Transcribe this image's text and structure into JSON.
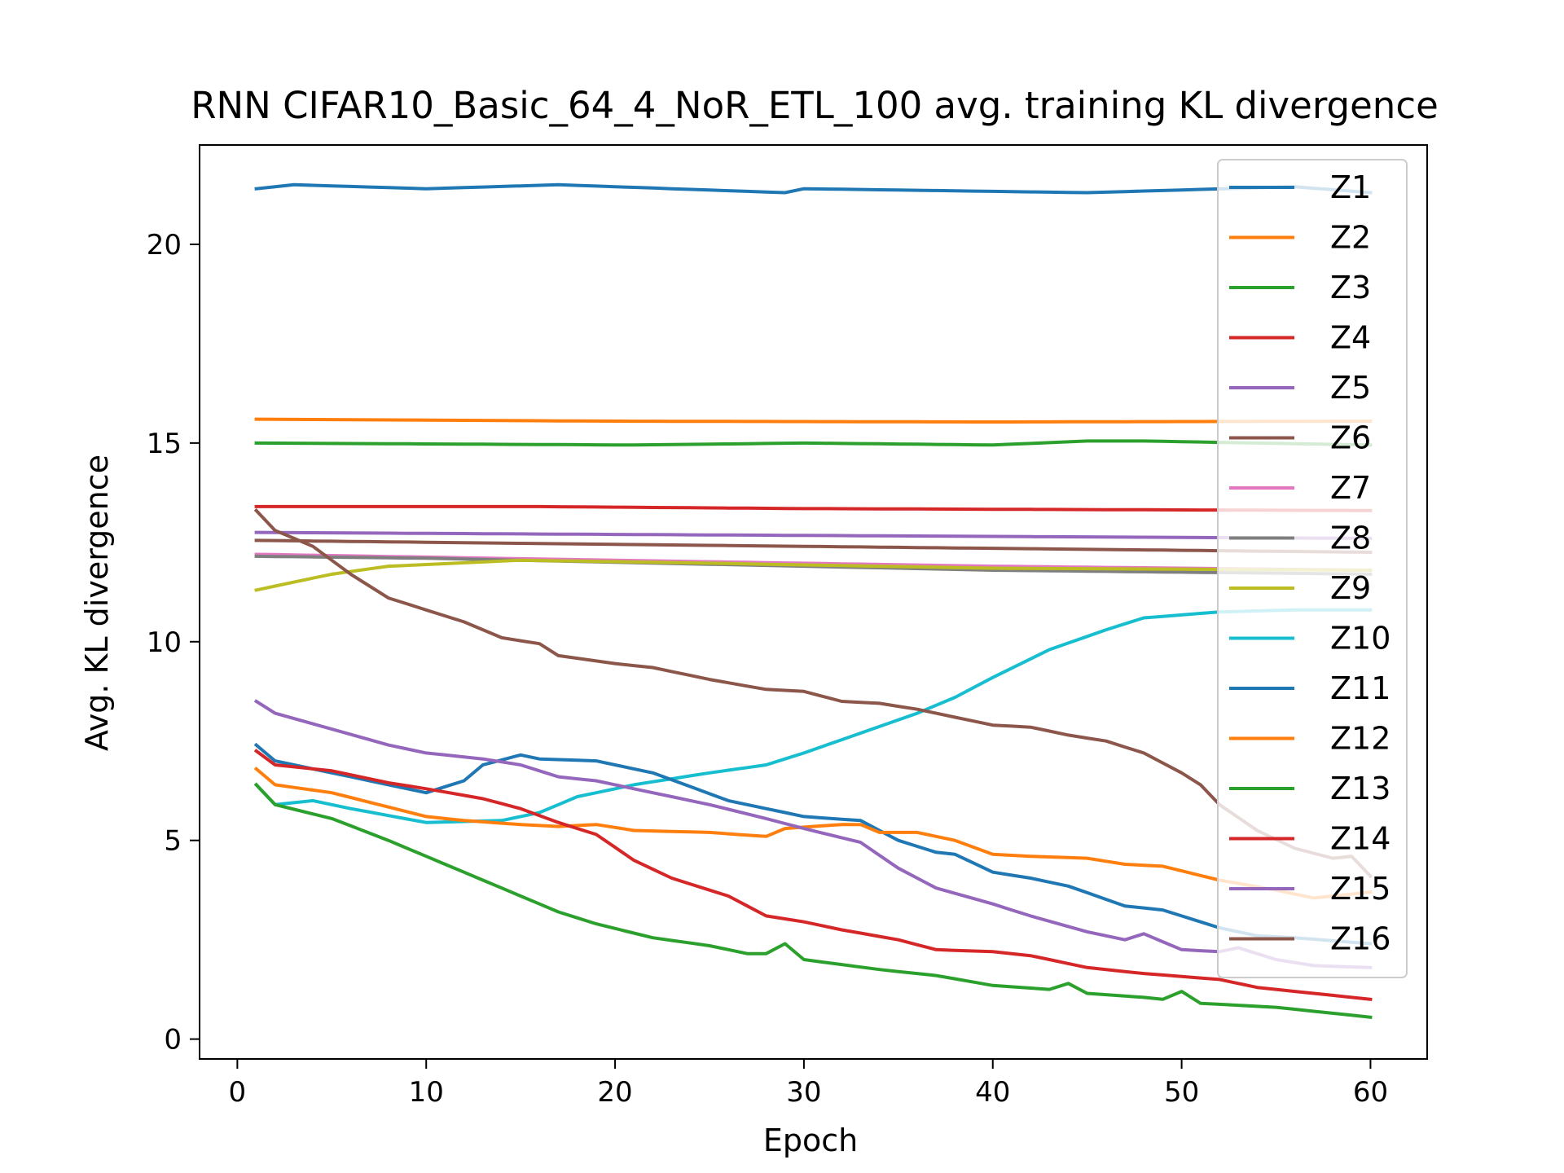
{
  "chart_data": {
    "type": "line",
    "title": "RNN CIFAR10_Basic_64_4_NoR_ETL_100 avg. training KL divergence",
    "xlabel": "Epoch",
    "ylabel": "Avg. KL divergence",
    "xlim": [
      -2,
      63
    ],
    "ylim": [
      -0.5,
      22.5
    ],
    "xticks": [
      0,
      10,
      20,
      30,
      40,
      50,
      60
    ],
    "yticks": [
      0,
      5,
      10,
      15,
      20
    ],
    "grid": false,
    "legend_position": "right, overlapping plot",
    "series": [
      {
        "name": "Z1",
        "color": "#1f77b4",
        "anchors": [
          [
            1,
            21.4
          ],
          [
            3,
            21.5
          ],
          [
            10,
            21.4
          ],
          [
            17,
            21.5
          ],
          [
            29,
            21.3
          ],
          [
            30,
            21.4
          ],
          [
            45,
            21.3
          ],
          [
            56,
            21.45
          ],
          [
            60,
            21.3
          ]
        ]
      },
      {
        "name": "Z2",
        "color": "#ff7f0e",
        "anchors": [
          [
            1,
            15.6
          ],
          [
            20,
            15.55
          ],
          [
            40,
            15.53
          ],
          [
            60,
            15.55
          ]
        ]
      },
      {
        "name": "Z3",
        "color": "#2ca02c",
        "anchors": [
          [
            1,
            15.0
          ],
          [
            21,
            14.95
          ],
          [
            30,
            15.0
          ],
          [
            40,
            14.95
          ],
          [
            45,
            15.05
          ],
          [
            48,
            15.05
          ],
          [
            60,
            14.95
          ]
        ]
      },
      {
        "name": "Z4",
        "color": "#d62728",
        "anchors": [
          [
            1,
            13.4
          ],
          [
            16,
            13.4
          ],
          [
            30,
            13.35
          ],
          [
            60,
            13.3
          ]
        ]
      },
      {
        "name": "Z5",
        "color": "#9467bd",
        "anchors": [
          [
            1,
            12.75
          ],
          [
            20,
            12.7
          ],
          [
            40,
            12.65
          ],
          [
            60,
            12.6
          ]
        ]
      },
      {
        "name": "Z6",
        "color": "#8c564b",
        "anchors": [
          [
            1,
            12.55
          ],
          [
            20,
            12.45
          ],
          [
            40,
            12.35
          ],
          [
            60,
            12.25
          ]
        ]
      },
      {
        "name": "Z7",
        "color": "#e377c2",
        "anchors": [
          [
            1,
            12.2
          ],
          [
            20,
            12.05
          ],
          [
            40,
            11.9
          ],
          [
            60,
            11.8
          ]
        ]
      },
      {
        "name": "Z8",
        "color": "#7f7f7f",
        "anchors": [
          [
            1,
            12.15
          ],
          [
            10,
            12.1
          ],
          [
            20,
            12.0
          ],
          [
            40,
            11.8
          ],
          [
            60,
            11.7
          ]
        ]
      },
      {
        "name": "Z9",
        "color": "#bcbd22",
        "anchors": [
          [
            1,
            11.3
          ],
          [
            5,
            11.7
          ],
          [
            8,
            11.9
          ],
          [
            15,
            12.05
          ],
          [
            22,
            12.0
          ],
          [
            40,
            11.85
          ],
          [
            60,
            11.8
          ]
        ]
      },
      {
        "name": "Z10",
        "color": "#17becf",
        "anchors": [
          [
            1,
            6.4
          ],
          [
            2,
            5.9
          ],
          [
            4,
            6.0
          ],
          [
            6,
            5.8
          ],
          [
            10,
            5.45
          ],
          [
            14,
            5.5
          ],
          [
            16,
            5.7
          ],
          [
            18,
            6.1
          ],
          [
            21,
            6.4
          ],
          [
            25,
            6.7
          ],
          [
            28,
            6.9
          ],
          [
            30,
            7.2
          ],
          [
            33,
            7.7
          ],
          [
            36,
            8.2
          ],
          [
            38,
            8.6
          ],
          [
            40,
            9.1
          ],
          [
            43,
            9.8
          ],
          [
            46,
            10.3
          ],
          [
            48,
            10.6
          ],
          [
            52,
            10.75
          ],
          [
            56,
            10.8
          ],
          [
            60,
            10.8
          ]
        ]
      },
      {
        "name": "Z11",
        "color": "#1f77b4",
        "anchors": [
          [
            1,
            7.4
          ],
          [
            2,
            7.0
          ],
          [
            5,
            6.7
          ],
          [
            10,
            6.2
          ],
          [
            12,
            6.5
          ],
          [
            13,
            6.9
          ],
          [
            15,
            7.15
          ],
          [
            16,
            7.05
          ],
          [
            19,
            7.0
          ],
          [
            22,
            6.7
          ],
          [
            26,
            6.0
          ],
          [
            30,
            5.6
          ],
          [
            33,
            5.5
          ],
          [
            35,
            5.0
          ],
          [
            37,
            4.7
          ],
          [
            38,
            4.65
          ],
          [
            40,
            4.2
          ],
          [
            42,
            4.05
          ],
          [
            44,
            3.85
          ],
          [
            47,
            3.35
          ],
          [
            49,
            3.25
          ],
          [
            52,
            2.8
          ],
          [
            54,
            2.6
          ],
          [
            56,
            2.55
          ],
          [
            60,
            2.4
          ]
        ]
      },
      {
        "name": "Z12",
        "color": "#ff7f0e",
        "anchors": [
          [
            1,
            6.8
          ],
          [
            2,
            6.4
          ],
          [
            5,
            6.2
          ],
          [
            10,
            5.6
          ],
          [
            12,
            5.5
          ],
          [
            15,
            5.4
          ],
          [
            17,
            5.35
          ],
          [
            19,
            5.4
          ],
          [
            21,
            5.25
          ],
          [
            25,
            5.2
          ],
          [
            28,
            5.1
          ],
          [
            29,
            5.3
          ],
          [
            32,
            5.4
          ],
          [
            33,
            5.4
          ],
          [
            34,
            5.2
          ],
          [
            36,
            5.2
          ],
          [
            38,
            5.0
          ],
          [
            40,
            4.65
          ],
          [
            42,
            4.6
          ],
          [
            45,
            4.55
          ],
          [
            47,
            4.4
          ],
          [
            49,
            4.35
          ],
          [
            52,
            4.0
          ],
          [
            55,
            3.75
          ],
          [
            57,
            3.55
          ],
          [
            60,
            3.7
          ]
        ]
      },
      {
        "name": "Z13",
        "color": "#2ca02c",
        "anchors": [
          [
            1,
            6.4
          ],
          [
            2,
            5.9
          ],
          [
            5,
            5.55
          ],
          [
            8,
            5.0
          ],
          [
            11,
            4.4
          ],
          [
            14,
            3.8
          ],
          [
            17,
            3.2
          ],
          [
            19,
            2.9
          ],
          [
            22,
            2.55
          ],
          [
            25,
            2.35
          ],
          [
            27,
            2.15
          ],
          [
            28,
            2.15
          ],
          [
            29,
            2.4
          ],
          [
            30,
            2.0
          ],
          [
            34,
            1.75
          ],
          [
            37,
            1.6
          ],
          [
            40,
            1.35
          ],
          [
            43,
            1.25
          ],
          [
            44,
            1.4
          ],
          [
            45,
            1.15
          ],
          [
            48,
            1.05
          ],
          [
            49,
            1.0
          ],
          [
            50,
            1.2
          ],
          [
            51,
            0.9
          ],
          [
            55,
            0.8
          ],
          [
            57,
            0.7
          ],
          [
            60,
            0.55
          ]
        ]
      },
      {
        "name": "Z14",
        "color": "#d62728",
        "anchors": [
          [
            1,
            7.25
          ],
          [
            2,
            6.9
          ],
          [
            5,
            6.75
          ],
          [
            8,
            6.45
          ],
          [
            10,
            6.3
          ],
          [
            13,
            6.05
          ],
          [
            15,
            5.8
          ],
          [
            17,
            5.45
          ],
          [
            19,
            5.15
          ],
          [
            21,
            4.5
          ],
          [
            23,
            4.05
          ],
          [
            26,
            3.6
          ],
          [
            28,
            3.1
          ],
          [
            30,
            2.95
          ],
          [
            32,
            2.75
          ],
          [
            35,
            2.5
          ],
          [
            37,
            2.25
          ],
          [
            40,
            2.2
          ],
          [
            42,
            2.1
          ],
          [
            45,
            1.8
          ],
          [
            48,
            1.65
          ],
          [
            52,
            1.5
          ],
          [
            54,
            1.3
          ],
          [
            57,
            1.15
          ],
          [
            60,
            1.0
          ]
        ]
      },
      {
        "name": "Z15",
        "color": "#9467bd",
        "anchors": [
          [
            1,
            8.5
          ],
          [
            2,
            8.2
          ],
          [
            5,
            7.8
          ],
          [
            8,
            7.4
          ],
          [
            10,
            7.2
          ],
          [
            13,
            7.05
          ],
          [
            15,
            6.9
          ],
          [
            17,
            6.6
          ],
          [
            19,
            6.5
          ],
          [
            22,
            6.2
          ],
          [
            25,
            5.9
          ],
          [
            28,
            5.55
          ],
          [
            30,
            5.3
          ],
          [
            33,
            4.95
          ],
          [
            35,
            4.3
          ],
          [
            37,
            3.8
          ],
          [
            40,
            3.4
          ],
          [
            42,
            3.1
          ],
          [
            45,
            2.7
          ],
          [
            47,
            2.5
          ],
          [
            48,
            2.65
          ],
          [
            50,
            2.25
          ],
          [
            52,
            2.2
          ],
          [
            53,
            2.3
          ],
          [
            55,
            2.0
          ],
          [
            57,
            1.85
          ],
          [
            60,
            1.8
          ]
        ]
      },
      {
        "name": "Z16",
        "color": "#8c564b",
        "anchors": [
          [
            1,
            13.3
          ],
          [
            2,
            12.8
          ],
          [
            4,
            12.4
          ],
          [
            6,
            11.7
          ],
          [
            8,
            11.1
          ],
          [
            10,
            10.8
          ],
          [
            12,
            10.5
          ],
          [
            14,
            10.1
          ],
          [
            16,
            9.95
          ],
          [
            17,
            9.65
          ],
          [
            20,
            9.45
          ],
          [
            22,
            9.35
          ],
          [
            25,
            9.05
          ],
          [
            28,
            8.8
          ],
          [
            30,
            8.75
          ],
          [
            32,
            8.5
          ],
          [
            34,
            8.45
          ],
          [
            36,
            8.3
          ],
          [
            38,
            8.1
          ],
          [
            40,
            7.9
          ],
          [
            42,
            7.85
          ],
          [
            44,
            7.65
          ],
          [
            46,
            7.5
          ],
          [
            48,
            7.2
          ],
          [
            50,
            6.7
          ],
          [
            51,
            6.4
          ],
          [
            52,
            5.9
          ],
          [
            54,
            5.25
          ],
          [
            56,
            4.8
          ],
          [
            58,
            4.55
          ],
          [
            59,
            4.6
          ],
          [
            60,
            4.1
          ]
        ]
      }
    ]
  }
}
